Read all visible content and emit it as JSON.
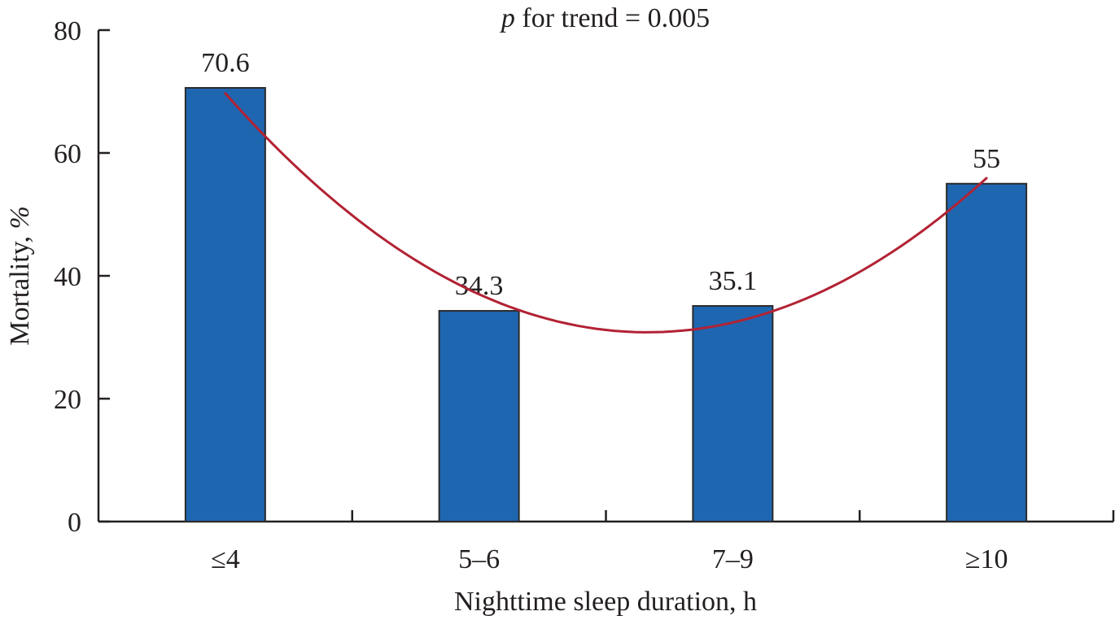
{
  "chart_data": {
    "type": "bar",
    "title": "p for trend = 0.005",
    "title_parts": {
      "italic": "p",
      "rest": " for trend = 0.005"
    },
    "xlabel": "Nighttime sleep duration, h",
    "ylabel": "Mortality, %",
    "ylabel_parts": {
      "main": "Mortality, ",
      "italic": "%"
    },
    "categories": [
      "≤4",
      "5–6",
      "7–9",
      "≥10"
    ],
    "values": [
      70.6,
      34.3,
      35.1,
      55
    ],
    "data_labels": [
      "70.6",
      "34.3",
      "35.1",
      "55"
    ],
    "ylim": [
      0,
      80
    ],
    "yticks": [
      0,
      20,
      40,
      60,
      80
    ],
    "grid": false,
    "legend": null,
    "trendline": {
      "type": "quadratic",
      "color": "#b22234"
    },
    "colors": {
      "bar_fill": "#1f66b0",
      "bar_stroke": "#2b2b2b",
      "axis": "#231f20",
      "trend": "#b22234"
    }
  }
}
